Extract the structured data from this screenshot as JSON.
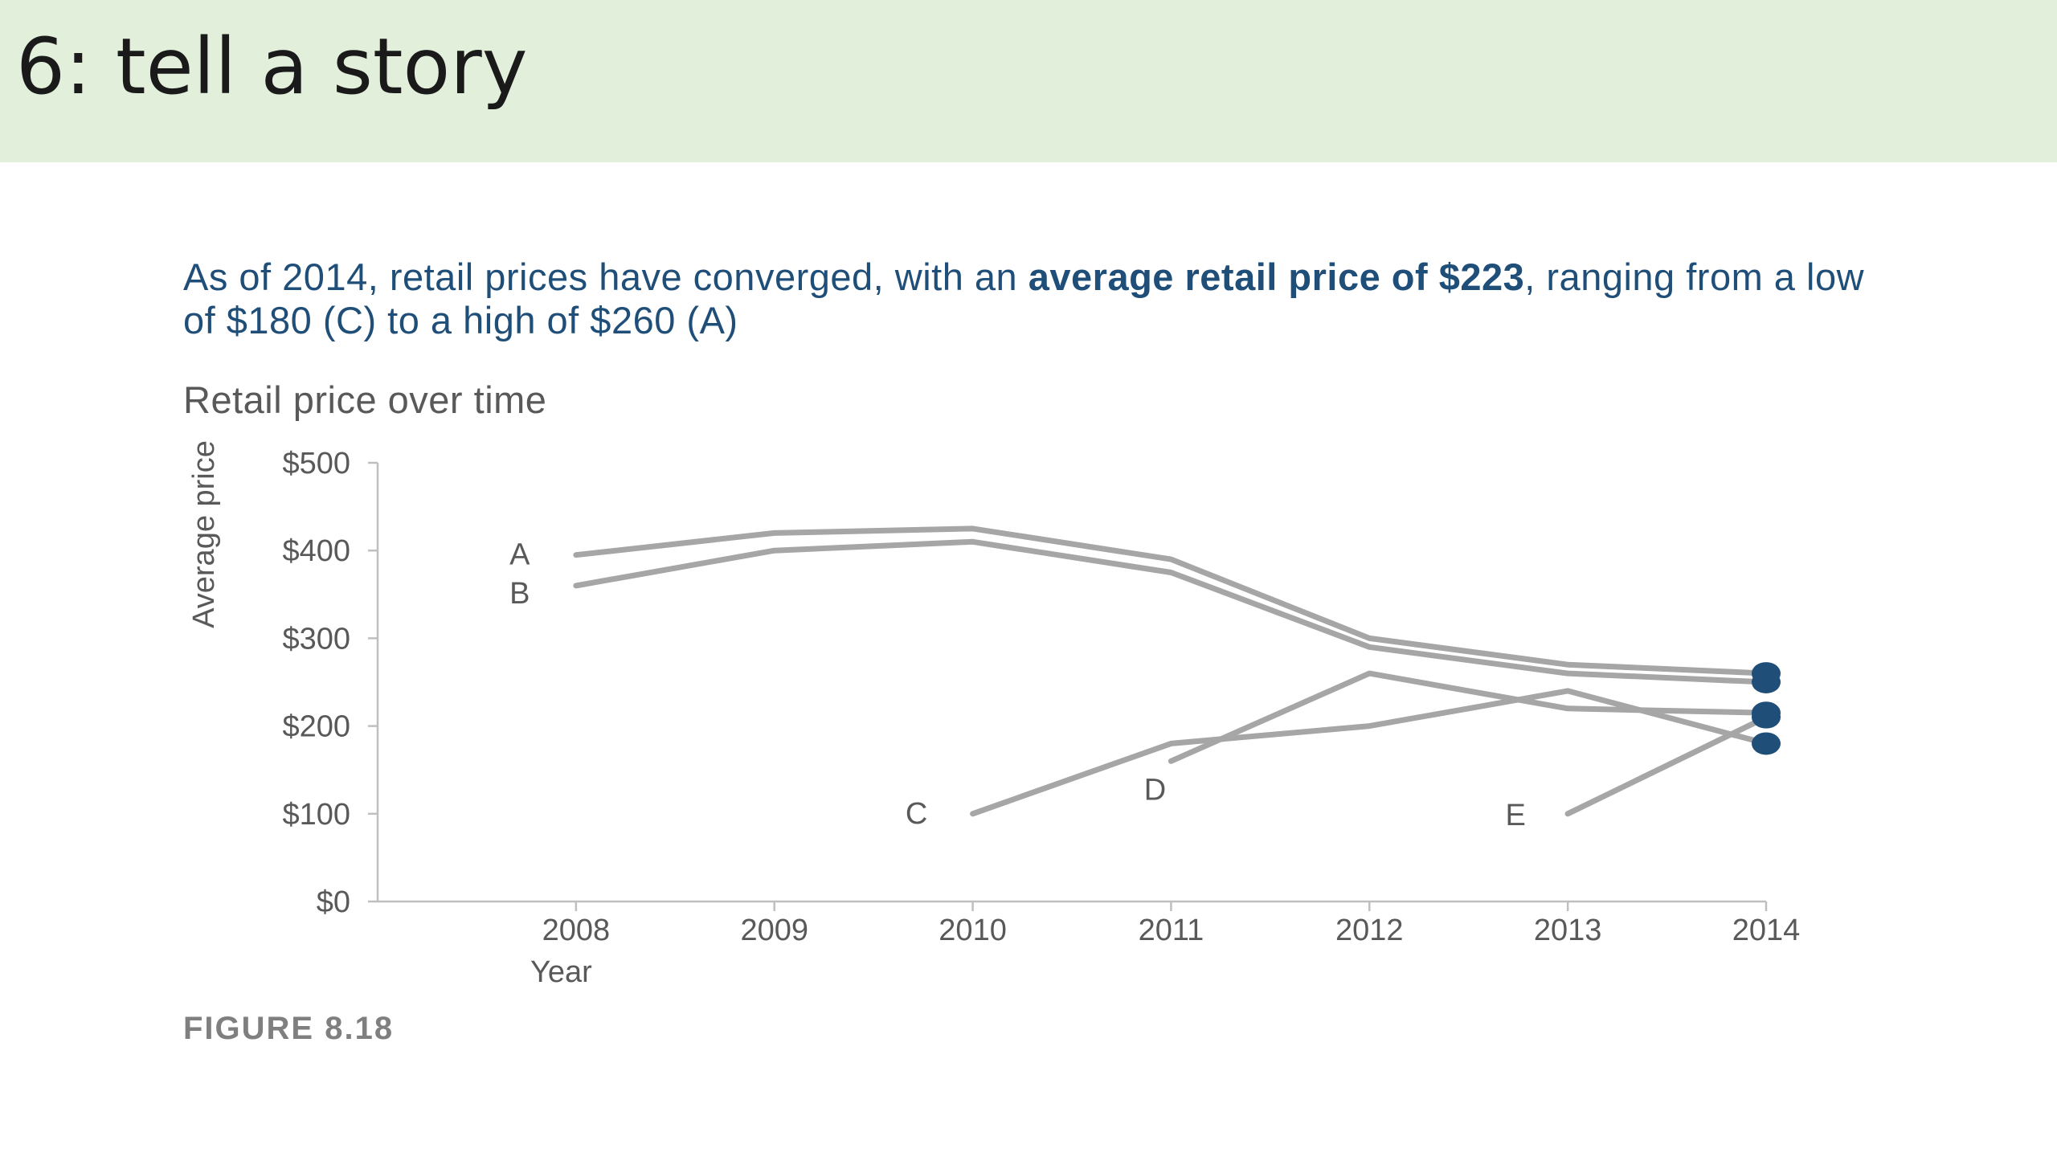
{
  "slide": {
    "title": "6: tell a story"
  },
  "headline": {
    "part1": "As of 2014, retail prices have converged, with an ",
    "bold": "average retail price of $223",
    "part2": ", ranging from a low of $180 (C) to a high of $260 (A)"
  },
  "figure_caption": "FIGURE 8.18",
  "colors": {
    "line": "#a6a6a6",
    "endpoint": "#1f4e79",
    "headline": "#1f4e79",
    "header_band": "#e2efda"
  },
  "chart_data": {
    "type": "line",
    "title": "Retail price over time",
    "xlabel": "Year",
    "ylabel": "Average price",
    "x": [
      2008,
      2009,
      2010,
      2011,
      2012,
      2013,
      2014
    ],
    "xlim": [
      2007,
      2014
    ],
    "ylim": [
      0,
      500
    ],
    "y_ticks": [
      0,
      100,
      200,
      300,
      400,
      500
    ],
    "y_tick_labels": [
      "$0",
      "$100",
      "$200",
      "$300",
      "$400",
      "$500"
    ],
    "x_tick_labels": [
      "2008",
      "2009",
      "2010",
      "2011",
      "2012",
      "2013",
      "2014"
    ],
    "grid": false,
    "legend": "direct labels",
    "series": [
      {
        "name": "A",
        "x": [
          2008,
          2009,
          2010,
          2011,
          2012,
          2013,
          2014
        ],
        "values": [
          395,
          420,
          425,
          390,
          300,
          270,
          260
        ]
      },
      {
        "name": "B",
        "x": [
          2008,
          2009,
          2010,
          2011,
          2012,
          2013,
          2014
        ],
        "values": [
          360,
          400,
          410,
          375,
          290,
          260,
          250
        ]
      },
      {
        "name": "C",
        "x": [
          2010,
          2011,
          2012,
          2013,
          2014
        ],
        "values": [
          100,
          180,
          200,
          240,
          180
        ]
      },
      {
        "name": "D",
        "x": [
          2011,
          2012,
          2013,
          2014
        ],
        "values": [
          160,
          260,
          220,
          215
        ]
      },
      {
        "name": "E",
        "x": [
          2013,
          2014
        ],
        "values": [
          100,
          210
        ]
      }
    ],
    "endpoint_markers": [
      {
        "series": "A",
        "x": 2014,
        "value": 260
      },
      {
        "series": "B",
        "x": 2014,
        "value": 250
      },
      {
        "series": "D",
        "x": 2014,
        "value": 215
      },
      {
        "series": "E",
        "x": 2014,
        "value": 210
      },
      {
        "series": "C",
        "x": 2014,
        "value": 180
      }
    ]
  }
}
